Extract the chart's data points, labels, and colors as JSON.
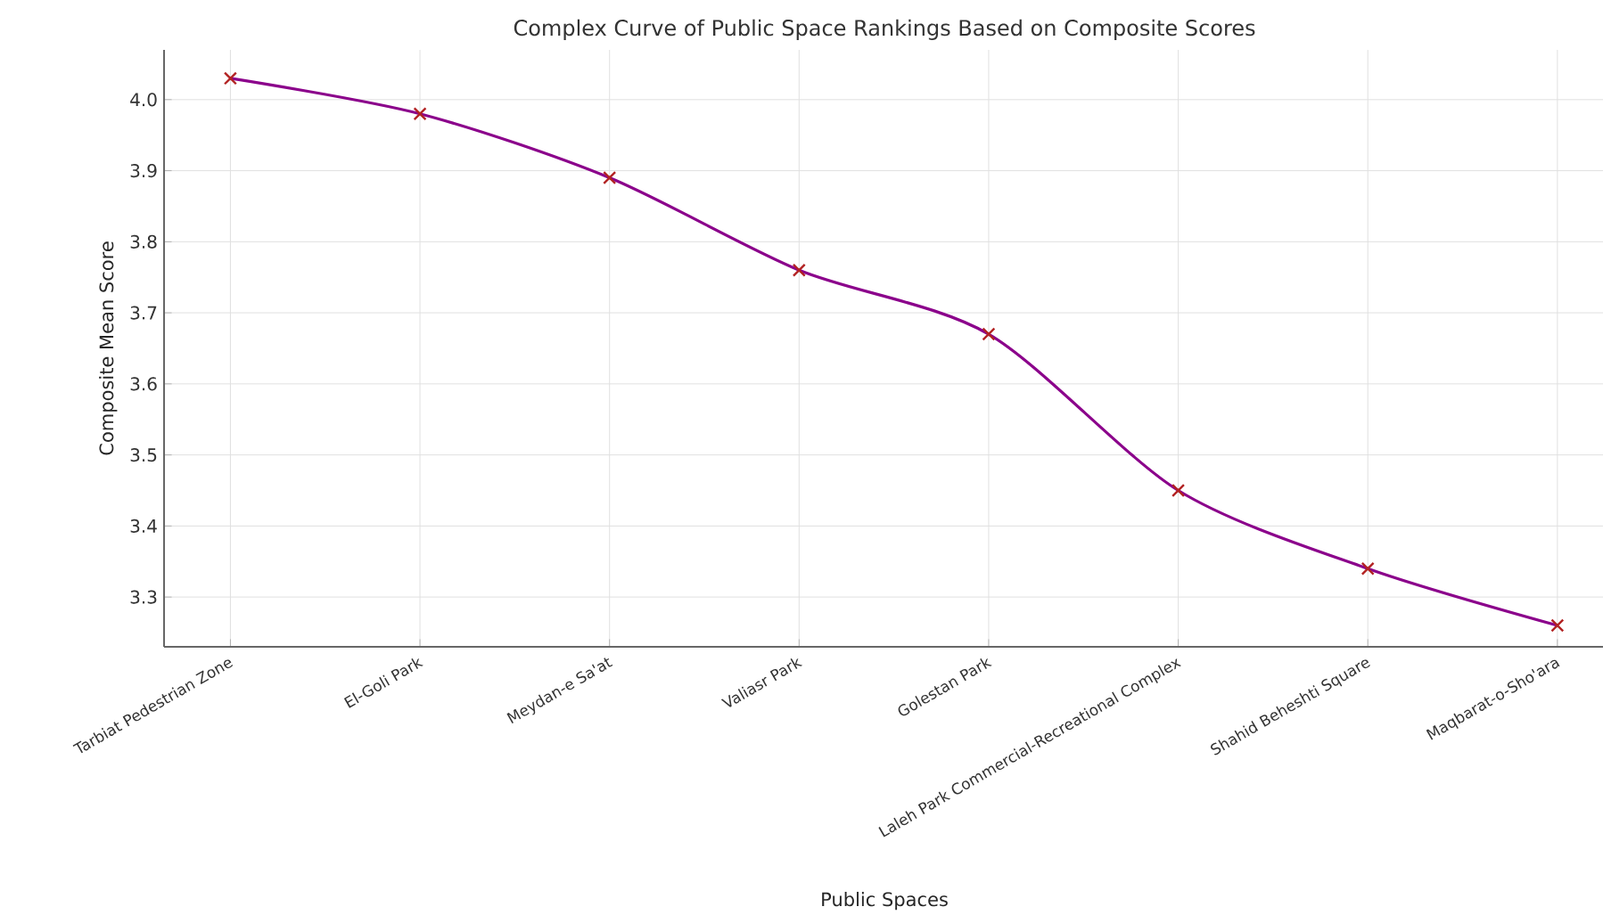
{
  "chart_data": {
    "type": "line",
    "title": "Complex Curve of Public Space Rankings Based on Composite Scores",
    "xlabel": "Public Spaces",
    "ylabel": "Composite Mean Score",
    "categories": [
      "Tarbiat Pedestrian Zone",
      "El-Goli Park",
      "Meydan-e Sa'at",
      "Valiasr Park",
      "Golestan Park",
      "Laleh Park Commercial-Recreational Complex",
      "Shahid Beheshti Square",
      "Maqbarat-o-Sho'ara"
    ],
    "series": [
      {
        "type": "line",
        "color": "#8b008b",
        "marker": "none",
        "values": [
          4.03,
          3.98,
          3.89,
          3.76,
          3.67,
          3.45,
          3.34,
          3.26
        ]
      },
      {
        "type": "scatter",
        "color": "#b22222",
        "marker": "cross",
        "values": [
          4.03,
          3.98,
          3.89,
          3.76,
          3.67,
          3.45,
          3.34,
          3.26
        ]
      }
    ],
    "ylim": [
      3.23,
      4.07
    ],
    "yticks": [
      3.3,
      3.4,
      3.5,
      3.6,
      3.7,
      3.8,
      3.9,
      {
        "value": 4.0,
        "label": "4.0"
      }
    ],
    "grid": true
  }
}
